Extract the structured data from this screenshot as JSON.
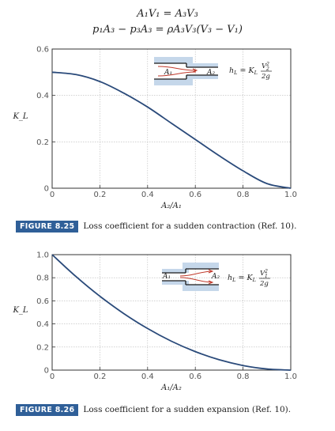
{
  "equations": {
    "continuity": "A₁V₁ = A₃V₃",
    "momentum": "p₁A₃ − p₃A₃ = ρA₃V₃(V₃ − V₁)"
  },
  "figures": [
    {
      "badge": "FIGURE 8.25",
      "caption": "Loss coefficient for a sudden contraction (Ref. 10).",
      "inset": {
        "area_in": "A₁",
        "area_out": "A₂",
        "formula": "hL = KL V₂² / 2g"
      }
    },
    {
      "badge": "FIGURE 8.26",
      "caption": "Loss coefficient for a sudden expansion (Ref. 10).",
      "inset": {
        "area_in": "A₁",
        "area_out": "A₂",
        "formula": "hL = KL V₁² / 2g"
      }
    }
  ],
  "colors": {
    "curve": "#2a4a7a",
    "badge": "#2f5f98",
    "grid": "#b8b8b8",
    "inset_wall": "#c5d7ea",
    "inset_flow": "#c0392b"
  },
  "chart_data": [
    {
      "type": "line",
      "x": [
        0,
        0.1,
        0.2,
        0.3,
        0.4,
        0.5,
        0.6,
        0.7,
        0.8,
        0.9,
        1.0
      ],
      "series": [
        {
          "values": [
            0.5,
            0.49,
            0.46,
            0.41,
            0.35,
            0.28,
            0.21,
            0.14,
            0.075,
            0.02,
            0.0
          ]
        }
      ],
      "xlabel": "A₂/A₁",
      "ylabel": "K_L",
      "xlim": [
        0,
        1.0
      ],
      "ylim": [
        0,
        0.6
      ],
      "xticks": [
        "0",
        "0.2",
        "0.4",
        "0.6",
        "0.8",
        "1.0"
      ],
      "yticks": [
        "0",
        "0.2",
        "0.4",
        "0.6"
      ],
      "grid": true
    },
    {
      "type": "line",
      "x": [
        0,
        0.1,
        0.2,
        0.3,
        0.4,
        0.5,
        0.6,
        0.7,
        0.8,
        0.9,
        1.0
      ],
      "series": [
        {
          "values": [
            1.0,
            0.81,
            0.64,
            0.49,
            0.36,
            0.25,
            0.16,
            0.09,
            0.04,
            0.01,
            0.0
          ]
        }
      ],
      "xlabel": "A₁/A₂",
      "ylabel": "K_L",
      "xlim": [
        0,
        1.0
      ],
      "ylim": [
        0,
        1.0
      ],
      "xticks": [
        "0",
        "0.2",
        "0.4",
        "0.6",
        "0.8",
        "1.0"
      ],
      "yticks": [
        "0",
        "0.2",
        "0.4",
        "0.6",
        "0.8",
        "1.0"
      ],
      "grid": true
    }
  ]
}
